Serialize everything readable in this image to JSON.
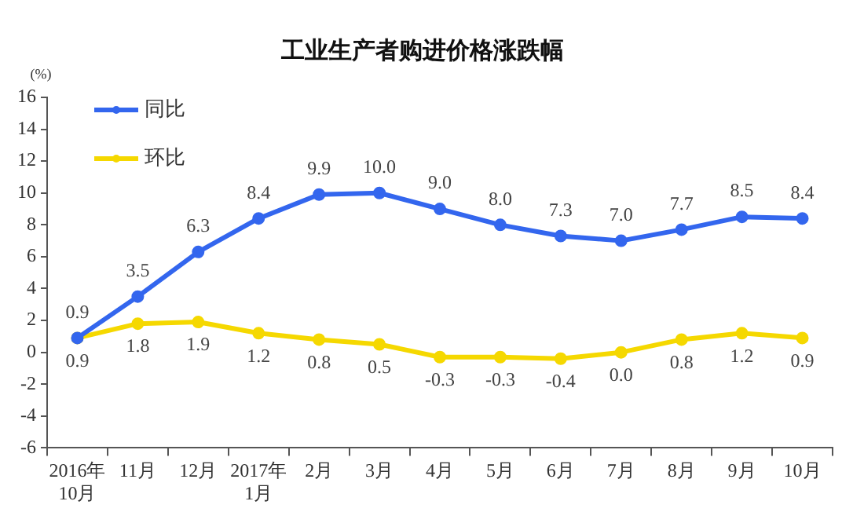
{
  "chart_data": {
    "type": "line",
    "title": "工业生产者购进价格涨跌幅",
    "ylabel": "(%)",
    "categories": [
      "2016年\n10月",
      "11月",
      "12月",
      "2017年\n1月",
      "2月",
      "3月",
      "4月",
      "5月",
      "6月",
      "7月",
      "8月",
      "9月",
      "10月"
    ],
    "series": [
      {
        "name": "同比",
        "color": "#3366ee",
        "values": [
          0.9,
          3.5,
          6.3,
          8.4,
          9.9,
          10.0,
          9.0,
          8.0,
          7.3,
          7.0,
          7.7,
          8.5,
          8.4
        ],
        "value_labels": [
          "0.9",
          "3.5",
          "6.3",
          "8.4",
          "9.9",
          "10.0",
          "9.0",
          "8.0",
          "7.3",
          "7.0",
          "7.7",
          "8.5",
          "8.4"
        ]
      },
      {
        "name": "环比",
        "color": "#f5d800",
        "values": [
          0.9,
          1.8,
          1.9,
          1.2,
          0.8,
          0.5,
          -0.3,
          -0.3,
          -0.4,
          0.0,
          0.8,
          1.2,
          0.9
        ],
        "value_labels": [
          "0.9",
          "1.8",
          "1.9",
          "1.2",
          "0.8",
          "0.5",
          "-0.3",
          "-0.3",
          "-0.4",
          "0.0",
          "0.8",
          "1.2",
          "0.9"
        ]
      }
    ],
    "ylim": [
      -6,
      16
    ],
    "yticks": [
      -6,
      -4,
      -2,
      0,
      2,
      4,
      6,
      8,
      10,
      12,
      14,
      16
    ],
    "grid": false,
    "legend": "top left",
    "marker": "circle",
    "line_style": "solid"
  }
}
